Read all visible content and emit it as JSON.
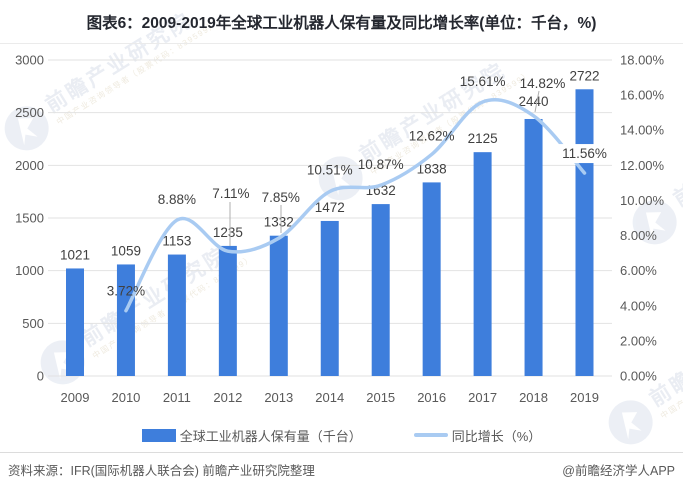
{
  "title": "图表6：2009-2019年全球工业机器人保有量及同比增长率(单位：千台，%)",
  "chart_data": {
    "type": "bar",
    "title": "图表6：2009-2019年全球工业机器人保有量及同比增长率(单位：千台，%)",
    "categories": [
      "2009",
      "2010",
      "2011",
      "2012",
      "2013",
      "2014",
      "2015",
      "2016",
      "2017",
      "2018",
      "2019"
    ],
    "series": [
      {
        "name": "全球工业机器人保有量（千台）",
        "kind": "bar",
        "axis": "left",
        "color": "#3E7EDC",
        "values": [
          1021,
          1059,
          1153,
          1235,
          1332,
          1472,
          1632,
          1838,
          2125,
          2440,
          2722
        ],
        "labels": [
          "1021",
          "1059",
          "1153",
          "1235",
          "1332",
          "1472",
          "1632",
          "1838",
          "2125",
          "2440",
          "2722"
        ]
      },
      {
        "name": "同比增长（%）",
        "kind": "line",
        "axis": "right",
        "color": "#A9CBF2",
        "values": [
          null,
          3.72,
          8.88,
          7.11,
          7.85,
          10.51,
          10.87,
          12.62,
          15.61,
          14.82,
          11.56
        ],
        "labels": [
          null,
          "3.72%",
          "8.88%",
          "7.11%",
          "7.85%",
          "10.51%",
          "10.87%",
          "12.62%",
          "15.61%",
          "14.82%",
          "11.56%"
        ]
      }
    ],
    "left_axis": {
      "min": 0,
      "max": 3000,
      "step": 500,
      "ticks": [
        "0",
        "500",
        "1000",
        "1500",
        "2000",
        "2500",
        "3000"
      ]
    },
    "right_axis": {
      "min": 0,
      "max": 18,
      "step": 2,
      "ticks": [
        "0.00%",
        "2.00%",
        "4.00%",
        "6.00%",
        "8.00%",
        "10.00%",
        "12.00%",
        "14.00%",
        "16.00%",
        "18.00%"
      ]
    },
    "grid": true,
    "legend_position": "bottom"
  },
  "footer": {
    "source": "资料来源：IFR(国际机器人联合会) 前瞻产业研究院整理",
    "brand": "@前瞻经济学人APP"
  },
  "watermark": {
    "text": "前瞻产业研究院",
    "subtext": "中国产业咨询领导者（股票代码：839599）"
  },
  "colors": {
    "bar": "#3E7EDC",
    "line": "#A9CBF2",
    "axis_text": "#595959",
    "data_label": "#404040",
    "gridline": "#E2E2E2",
    "title": "#24272F",
    "leader": "#AFAFAF"
  }
}
